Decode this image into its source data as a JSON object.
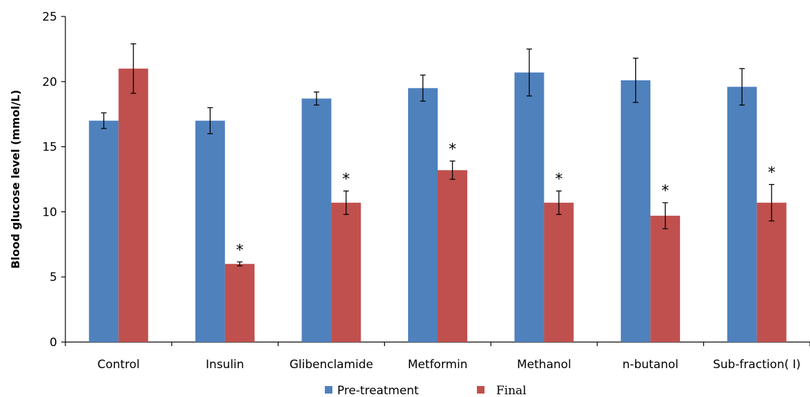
{
  "chart_data": {
    "type": "bar",
    "ylabel": "Blood glucose level (mmol/L)",
    "xlabel": "",
    "ylim": [
      0,
      25
    ],
    "yticks": [
      0,
      5,
      10,
      15,
      20,
      25
    ],
    "categories": [
      "Control",
      "Insulin",
      "Glibenclamide",
      "Metformin",
      "Methanol",
      "n-butanol",
      "Sub-fraction( I)"
    ],
    "series": [
      {
        "name": "Pre-treatment",
        "color": "#4F81BD",
        "values": [
          17.0,
          17.0,
          18.7,
          19.5,
          20.7,
          20.1,
          19.6
        ],
        "errors": [
          0.6,
          1.0,
          0.5,
          1.0,
          1.8,
          1.7,
          1.4
        ],
        "markers": [
          "",
          "",
          "",
          "",
          "",
          "",
          ""
        ]
      },
      {
        "name": "Final",
        "color": "#C0504D",
        "values": [
          21.0,
          6.0,
          10.7,
          13.2,
          10.7,
          9.7,
          10.7
        ],
        "errors": [
          1.9,
          0.15,
          0.9,
          0.7,
          0.9,
          1.0,
          1.4
        ],
        "markers": [
          "",
          "*",
          "*",
          "*",
          "*",
          "*",
          "*"
        ]
      }
    ],
    "legend_position": "bottom",
    "grid": false
  }
}
